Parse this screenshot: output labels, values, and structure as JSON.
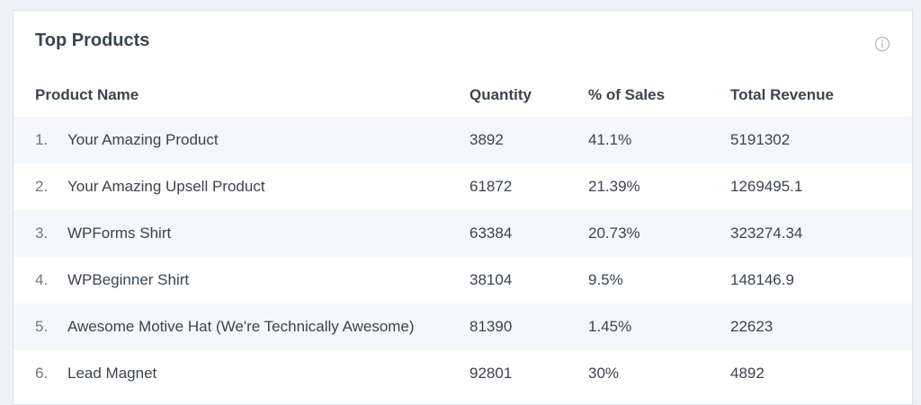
{
  "card": {
    "title": "Top Products",
    "info_icon": "info-icon"
  },
  "table": {
    "columns": {
      "product_name": "Product Name",
      "quantity": "Quantity",
      "percent_of_sales": "% of Sales",
      "total_revenue": "Total Revenue"
    },
    "rows": [
      {
        "rank": "1.",
        "name": "Your Amazing Product",
        "quantity": "3892",
        "percent": "41.1%",
        "revenue": "5191302"
      },
      {
        "rank": "2.",
        "name": "Your Amazing Upsell Product",
        "quantity": "61872",
        "percent": "21.39%",
        "revenue": "1269495.1"
      },
      {
        "rank": "3.",
        "name": "WPForms Shirt",
        "quantity": "63384",
        "percent": "20.73%",
        "revenue": "323274.34"
      },
      {
        "rank": "4.",
        "name": "WPBeginner Shirt",
        "quantity": "38104",
        "percent": "9.5%",
        "revenue": "148146.9"
      },
      {
        "rank": "5.",
        "name": "Awesome Motive Hat (We're Technically Awesome)",
        "quantity": "81390",
        "percent": "1.45%",
        "revenue": "22623"
      },
      {
        "rank": "6.",
        "name": "Lead Magnet",
        "quantity": "92801",
        "percent": "30%",
        "revenue": "4892"
      }
    ]
  },
  "colors": {
    "page_background": "#eef2f6",
    "card_background": "#ffffff",
    "stripe": "#f4f7fb",
    "text": "#3b4450",
    "muted": "#6f7883",
    "icon": "#b9c3ce"
  }
}
